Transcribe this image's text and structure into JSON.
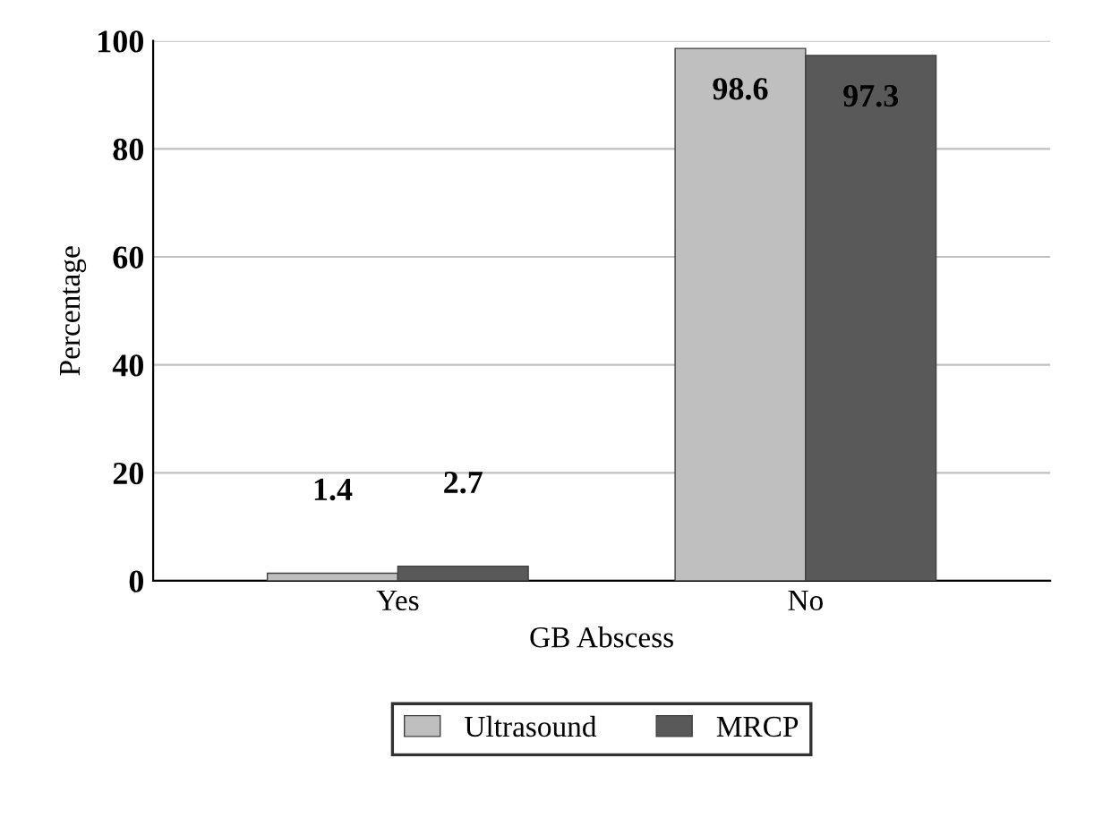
{
  "chart_data": {
    "type": "bar",
    "xlabel": "GB Abscess",
    "ylabel": "Percentage",
    "categories": [
      "Yes",
      "No"
    ],
    "series": [
      {
        "name": "Ultrasound",
        "color": "#bfbfbf",
        "values": [
          1.4,
          98.6
        ]
      },
      {
        "name": "MRCP",
        "color": "#595959",
        "values": [
          2.7,
          97.3
        ]
      }
    ],
    "ylim": [
      0,
      100
    ],
    "yticks": [
      0,
      20,
      40,
      60,
      80,
      100
    ],
    "grid": "y",
    "legend": "bottom",
    "data_labels": true
  }
}
